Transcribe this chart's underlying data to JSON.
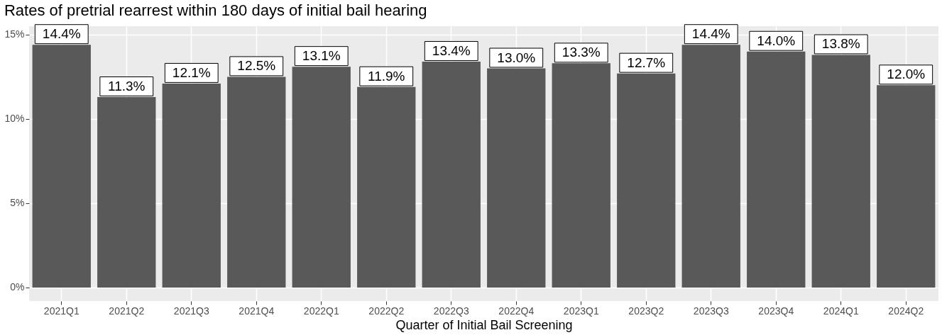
{
  "chart_data": {
    "type": "bar",
    "title": "Rates of pretrial rearrest within 180 days of initial bail hearing",
    "xlabel": "Quarter of Initial Bail Screening",
    "categories": [
      "2021Q1",
      "2021Q2",
      "2021Q3",
      "2021Q4",
      "2022Q1",
      "2022Q2",
      "2022Q3",
      "2022Q4",
      "2023Q1",
      "2023Q2",
      "2023Q3",
      "2023Q4",
      "2024Q1",
      "2024Q2"
    ],
    "values": [
      14.4,
      11.3,
      12.1,
      12.5,
      13.1,
      11.9,
      13.4,
      13.0,
      13.3,
      12.7,
      14.4,
      14.0,
      13.8,
      12.0
    ],
    "value_labels": [
      "14.4%",
      "11.3%",
      "12.1%",
      "12.5%",
      "13.1%",
      "11.9%",
      "13.4%",
      "13.0%",
      "13.3%",
      "12.7%",
      "14.4%",
      "14.0%",
      "13.8%",
      "12.0%"
    ],
    "color": "#595959",
    "ylim": [
      -0.8,
      15.5
    ],
    "yticks": [
      {
        "value": 0,
        "label": "0%"
      },
      {
        "value": 5,
        "label": "5%"
      },
      {
        "value": 10,
        "label": "10%"
      },
      {
        "value": 15,
        "label": "15%"
      }
    ],
    "grid": true
  }
}
